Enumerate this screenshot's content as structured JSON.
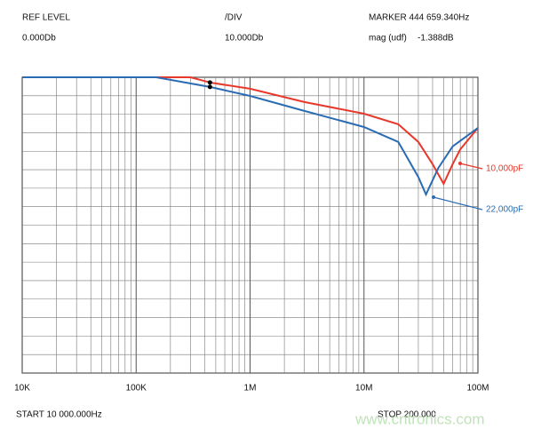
{
  "chart_data": {
    "type": "line",
    "header": {
      "ref_label": "REF LEVEL",
      "ref_value": "0.000Db",
      "div_label": "/DIV",
      "div_value": "10.000Db",
      "marker_label": "MARKER 444 659.340Hz",
      "mag_label": "mag (udf)",
      "mag_value": "-1.388dB"
    },
    "footer": {
      "start": "START 10 000.000Hz",
      "stop": "STOP 200.000",
      "watermark": "www.cntronics.com"
    },
    "xscale": "log",
    "xlim": [
      10000,
      100000000
    ],
    "xticks": [
      {
        "value": 10000,
        "label": "10K"
      },
      {
        "value": 100000,
        "label": "100K"
      },
      {
        "value": 1000000,
        "label": "1M"
      },
      {
        "value": 10000000,
        "label": "10M"
      },
      {
        "value": 100000000,
        "label": "100M"
      }
    ],
    "ylim": [
      -160,
      0
    ],
    "grid": true,
    "marker_x": 444659.34,
    "series": [
      {
        "name": "10,000pF",
        "color": "#e8372b",
        "x": [
          10000,
          100000,
          300000,
          450000,
          1000000,
          3000000,
          10000000,
          20000000,
          30000000,
          40000000,
          50000000,
          60000000,
          70000000,
          100000000
        ],
        "values": [
          0,
          0,
          0,
          -2.9,
          -6.2,
          -13.4,
          -19.7,
          -25.4,
          -35,
          -47,
          -57.6,
          -47,
          -39,
          -27.4
        ]
      },
      {
        "name": "22,000pF",
        "color": "#2a6cb3",
        "x": [
          10000,
          100000,
          150000,
          450000,
          1000000,
          3000000,
          10000000,
          20000000,
          30000000,
          35000000,
          45000000,
          60000000,
          100000000
        ],
        "values": [
          0,
          0,
          0,
          -5.3,
          -10.1,
          -18.2,
          -26.9,
          -35,
          -54,
          -63.4,
          -49,
          -37.4,
          -27.4
        ]
      }
    ]
  }
}
